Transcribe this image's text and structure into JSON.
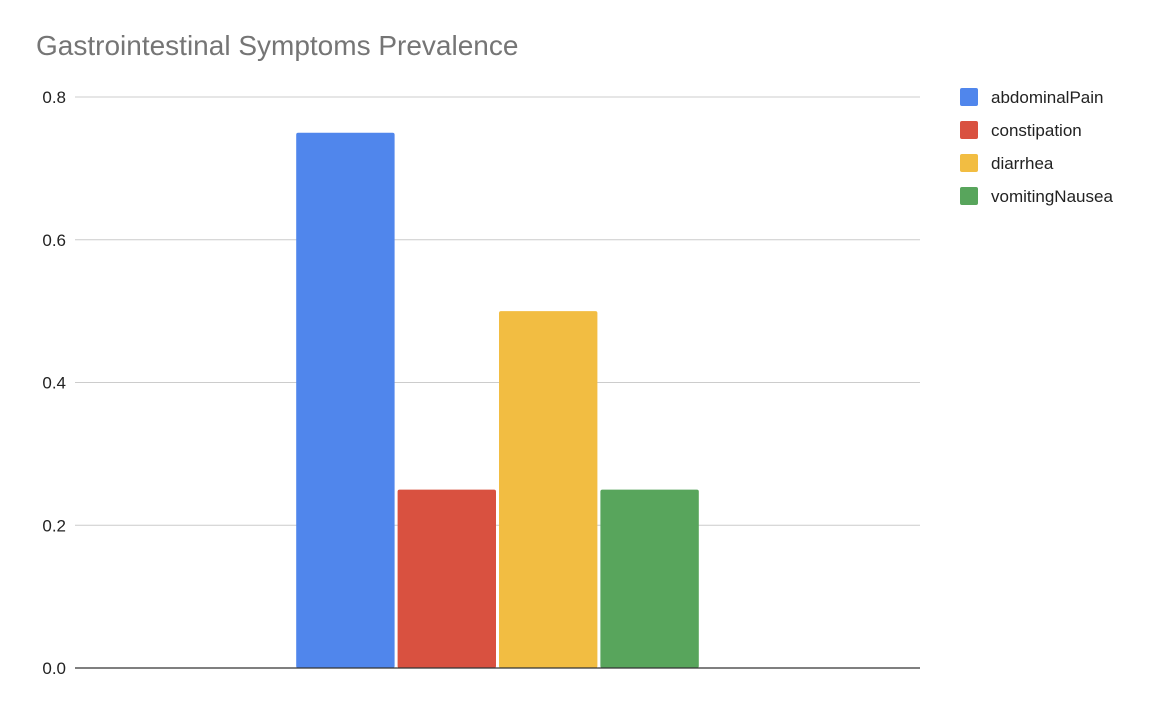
{
  "chart_data": {
    "type": "bar",
    "title": "Gastrointestinal Symptoms Prevalence",
    "xlabel": "",
    "ylabel": "",
    "categories": [
      ""
    ],
    "series": [
      {
        "name": "abdominalPain",
        "color": "#5086EC",
        "values": [
          0.75
        ]
      },
      {
        "name": "constipation",
        "color": "#D95140",
        "values": [
          0.25
        ]
      },
      {
        "name": "diarrhea",
        "color": "#F2BD42",
        "values": [
          0.5
        ]
      },
      {
        "name": "vomitingNausea",
        "color": "#58A55C",
        "values": [
          0.25
        ]
      }
    ],
    "ylim": [
      0,
      0.8
    ],
    "yticks": [
      "0.0",
      "0.2",
      "0.4",
      "0.6",
      "0.8"
    ],
    "grid": true,
    "legend_position": "right"
  }
}
